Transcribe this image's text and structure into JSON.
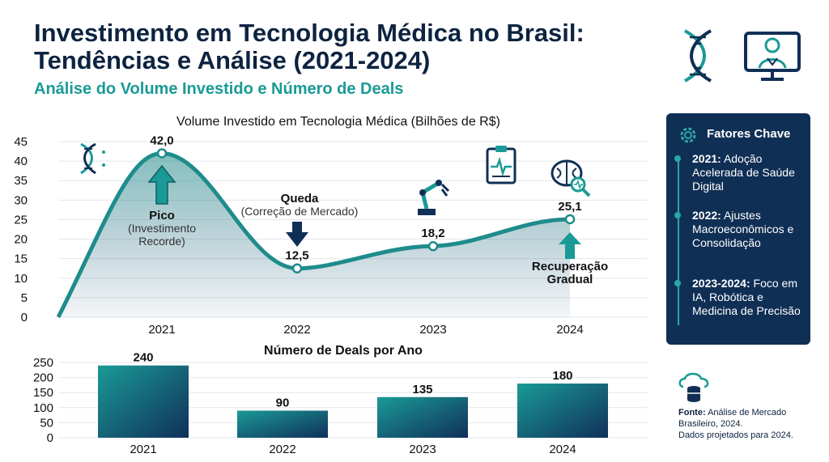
{
  "header": {
    "title_line1": "Investimento em Tecnologia Médica no Brasil:",
    "title_line2": "Tendências e Análise (2021-2024)",
    "subtitle": "Análise do Volume Investido e Número de Deals"
  },
  "icons": {
    "header_left": "dna-icon",
    "header_right": "doctor-monitor-icon",
    "chart_icons": [
      "dna-icon",
      "robot-arm-icon",
      "clipboard-ecg-icon",
      "brain-magnifier-icon"
    ],
    "panel": "gear-icon",
    "source": "cloud-database-icon"
  },
  "colors": {
    "accent": "#1a9a96",
    "navy": "#102f55",
    "line": "#1f8c8c"
  },
  "chart_data": [
    {
      "type": "area",
      "title": "Volume Investido em Tecnologia Médica (Bilhões de R$)",
      "x": [
        "2021",
        "2022",
        "2023",
        "2024"
      ],
      "values": [
        42.0,
        12.5,
        18.2,
        25.1
      ],
      "value_labels": [
        "42,0",
        "12,5",
        "18,2",
        "25,1"
      ],
      "ylim": [
        0,
        45
      ],
      "yticks": [
        0,
        5,
        10,
        15,
        20,
        25,
        30,
        35,
        40,
        45
      ],
      "grid": true,
      "annotations": [
        {
          "year": "2021",
          "kind": "up",
          "title": "Pico",
          "text": "(Investimento Recorde)"
        },
        {
          "year": "2022",
          "kind": "down",
          "title": "Queda",
          "text": "(Correção de Mercado)"
        },
        {
          "year": "2024",
          "kind": "up",
          "title": "Recuperação",
          "text": "Gradual"
        }
      ]
    },
    {
      "type": "bar",
      "title": "Número de Deals por Ano",
      "categories": [
        "2021",
        "2022",
        "2023",
        "2024"
      ],
      "values": [
        240,
        90,
        135,
        180
      ],
      "ylim": [
        0,
        250
      ],
      "yticks": [
        0,
        50,
        100,
        150,
        200,
        250
      ],
      "grid": true
    }
  ],
  "factors": {
    "title": "Fatores Chave",
    "items": [
      {
        "label": "2021:",
        "text": "Adoção Acelerada de Saúde Digital"
      },
      {
        "label": "2022:",
        "text": "Ajustes Macroeconômicos e Consolidação"
      },
      {
        "label": "2023-2024:",
        "text": "Foco em IA, Robótica e Medicina de Precisão"
      }
    ]
  },
  "source": {
    "label": "Fonte:",
    "text": "Análise de Mercado Brasileiro, 2024.",
    "note": "Dados projetados para 2024."
  }
}
